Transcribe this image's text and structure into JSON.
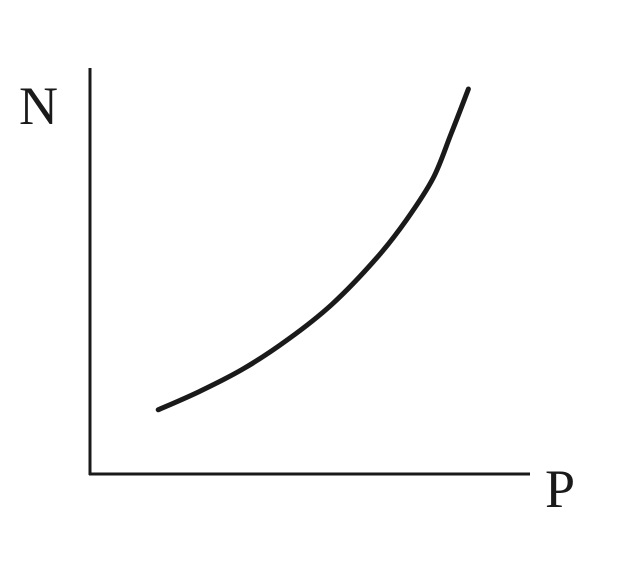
{
  "chart_data": {
    "type": "line",
    "title": "",
    "xlabel": "P",
    "ylabel": "N",
    "grid": false,
    "legend": "none",
    "axis_ticks": false,
    "xlim": [
      0,
      100
    ],
    "ylim": [
      0,
      100
    ],
    "series": [
      {
        "x": [
          15.5,
          25,
          35,
          45,
          55,
          65,
          72,
          78,
          82,
          86
        ],
        "y": [
          15.5,
          20,
          25.5,
          32.5,
          41,
          52,
          61.5,
          71.5,
          82,
          93
        ]
      }
    ],
    "colors": {
      "axis": "#1a1a1a",
      "curve": "#1a1a1a",
      "background": "#ffffff"
    }
  }
}
